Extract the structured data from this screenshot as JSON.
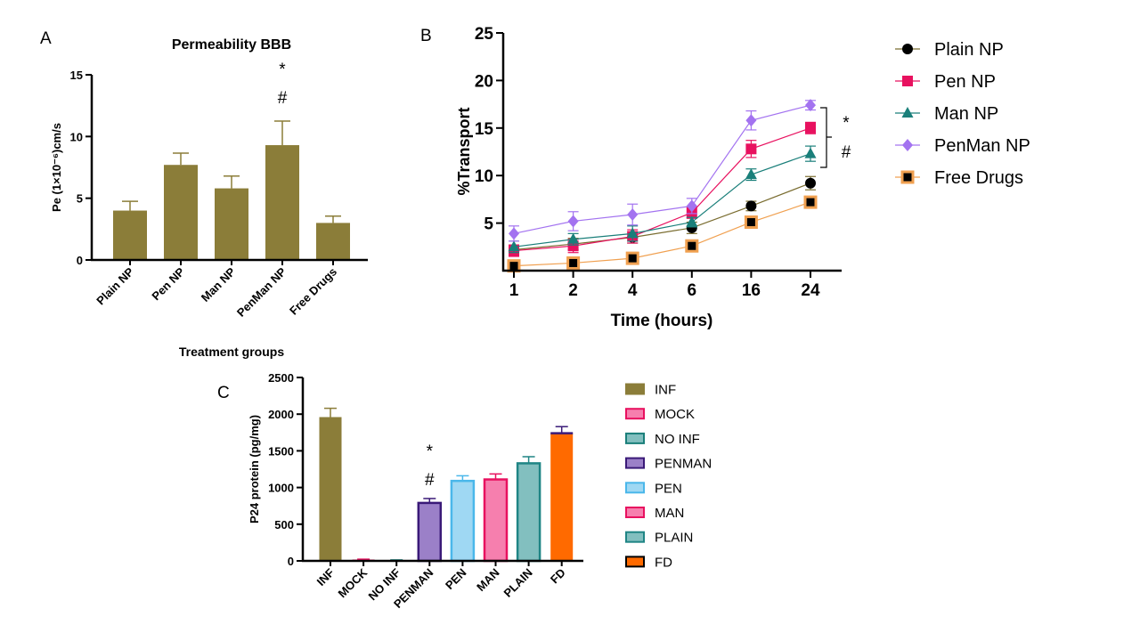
{
  "colors": {
    "olive": "#8b7d39",
    "pink": "#e8115f",
    "teal": "#1a7f7a",
    "purple": "#a373f0",
    "orange": "#f0a050",
    "penman_fill": "#9b80c8",
    "penman_edge": "#3a1a78",
    "pen_fill": "#9fd8f3",
    "pen_edge": "#4ab7ea",
    "man_fill": "#f67fae",
    "man_edge": "#e8115f",
    "plain_fill": "#82bfbf",
    "plain_edge": "#1f8585",
    "fd_fill": "#ff6a00"
  },
  "panels": {
    "a": "A",
    "b": "B",
    "c": "C"
  },
  "chart_data": [
    {
      "type": "bar",
      "title": "Permeability BBB",
      "xlabel": "Treatment groups",
      "ylabel": "Pe (1×10⁻⁶)cm/s",
      "categories": [
        "Plain NP",
        "Pen NP",
        "Man NP",
        "PenMan NP",
        "Free Drugs"
      ],
      "values": [
        4.0,
        7.7,
        5.8,
        9.3,
        3.0
      ],
      "errors": [
        0.75,
        0.95,
        1.0,
        1.95,
        0.55
      ],
      "ylim": [
        0,
        15
      ],
      "yticks": [
        "0",
        "5",
        "10",
        "15"
      ],
      "annotations": [
        {
          "category": "PenMan NP",
          "lines": [
            "*",
            "#"
          ]
        }
      ]
    },
    {
      "type": "line",
      "xlabel": "Time (hours)",
      "ylabel": "%Transport",
      "x": [
        "1",
        "2",
        "4",
        "6",
        "16",
        "24"
      ],
      "ylim": [
        0,
        25
      ],
      "yticks": [
        "5",
        "10",
        "15",
        "20",
        "25"
      ],
      "series": [
        {
          "name": "Plain NP",
          "values": [
            2.2,
            2.8,
            3.5,
            4.5,
            6.8,
            9.2
          ],
          "errors": [
            0.5,
            0.6,
            0.6,
            0.6,
            0.5,
            0.7
          ]
        },
        {
          "name": "Pen NP",
          "values": [
            2.1,
            2.6,
            3.6,
            6.1,
            12.8,
            15.0
          ],
          "errors": [
            0.6,
            0.7,
            0.7,
            0.6,
            0.9,
            0.6
          ]
        },
        {
          "name": "Man NP",
          "values": [
            2.5,
            3.3,
            3.9,
            5.1,
            10.1,
            12.3
          ],
          "errors": [
            0.6,
            0.6,
            0.8,
            0.5,
            0.6,
            0.8
          ]
        },
        {
          "name": "PenMan NP",
          "values": [
            3.9,
            5.2,
            5.9,
            6.8,
            15.8,
            17.4
          ],
          "errors": [
            0.8,
            1.0,
            1.1,
            0.8,
            1.0,
            0.5
          ]
        },
        {
          "name": "Free Drugs",
          "values": [
            0.5,
            0.8,
            1.3,
            2.6,
            5.1,
            7.2
          ],
          "errors": [
            0.5,
            0.6,
            0.6,
            0.6,
            0.6,
            0.5
          ]
        }
      ],
      "annotations": [
        "*",
        "#"
      ],
      "legend": "right"
    },
    {
      "type": "bar",
      "ylabel": "P24 protein (pg/mg)",
      "categories": [
        "INF",
        "MOCK",
        "NO INF",
        "PENMAN",
        "PEN",
        "MAN",
        "PLAIN",
        "FD"
      ],
      "values": [
        1960,
        18,
        10,
        790,
        1090,
        1110,
        1330,
        1740
      ],
      "errors": [
        120,
        5,
        3,
        60,
        70,
        75,
        90,
        90
      ],
      "ylim": [
        0,
        2500
      ],
      "yticks": [
        "0",
        "500",
        "1000",
        "1500",
        "2000",
        "2500"
      ],
      "legend_labels": [
        "INF",
        "MOCK",
        "NO INF",
        "PENMAN",
        "PEN",
        "MAN",
        "PLAIN",
        "FD"
      ],
      "annotations": [
        {
          "category": "PENMAN",
          "lines": [
            "*",
            "#"
          ]
        }
      ],
      "legend": "right"
    }
  ]
}
